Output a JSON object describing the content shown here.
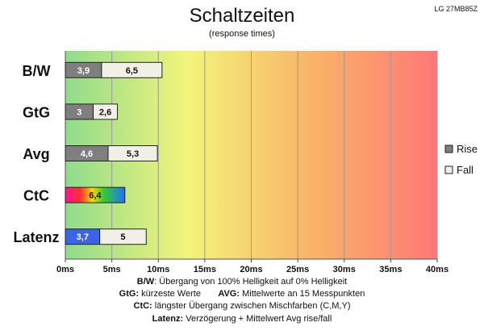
{
  "header": {
    "title": "Schaltzeiten",
    "subtitle": "(response times)",
    "model": "LG 27MB85Z"
  },
  "footer": {
    "line1_key": "B/W",
    "line1_text": ":  Übergang von 100% Helligkeit auf 0% Helligkeit",
    "line2_key_a": "GtG:",
    "line2_text_a": " kürzeste  Werte",
    "line2_key_b": "AVG:",
    "line2_text_b": " Mittelwerte  an 15 Messpunkten",
    "line3_key": "CtC:",
    "line3_text": " längster Übergang  zwischen Mischfarben  (C,M,Y)",
    "line4_key": "Latenz:",
    "line4_text": " Verzögerung  + Mittelwert  Avg rise/fall"
  },
  "chart_data": {
    "type": "bar",
    "orientation": "horizontal",
    "stacked": true,
    "categories": [
      "B/W",
      "GtG",
      "Avg",
      "CtC",
      "Latenz"
    ],
    "series": [
      {
        "name": "Rise",
        "values": [
          3.9,
          3,
          4.6,
          6.4,
          3.7
        ],
        "color": "#7f7f7f"
      },
      {
        "name": "Fall",
        "values": [
          6.5,
          2.6,
          5.3,
          null,
          5
        ],
        "color": "#f2f0e6"
      }
    ],
    "special_colors": {
      "CtC": "rainbow",
      "Latenz": "#3a63e8"
    },
    "xlim": [
      0,
      40
    ],
    "x_ticks": [
      0,
      5,
      10,
      15,
      20,
      25,
      30,
      35,
      40
    ],
    "tick_unit": "ms",
    "grid": true,
    "legend": "right",
    "background_gradient": [
      "#8fdc8c",
      "#f4f47a",
      "#f9b468",
      "#ff7777"
    ]
  }
}
